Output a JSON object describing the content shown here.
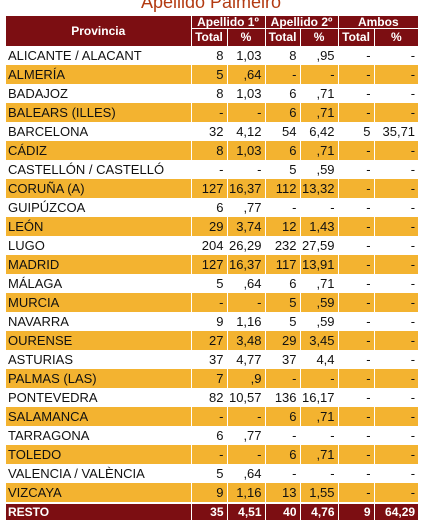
{
  "title": "Apellido Palmeiro",
  "header": {
    "provincia": "Provincia",
    "groups": [
      "Apellido 1º",
      "Apellido 2º",
      "Ambos"
    ],
    "sub_total": "Total",
    "sub_pct": "%"
  },
  "rows": [
    {
      "name": "ALICANTE / ALACANT",
      "v": [
        "8",
        "1,03",
        "8",
        ",95",
        "-",
        "-"
      ]
    },
    {
      "name": "ALMERÍA",
      "v": [
        "5",
        ",64",
        "-",
        "-",
        "-",
        "-"
      ]
    },
    {
      "name": "BADAJOZ",
      "v": [
        "8",
        "1,03",
        "6",
        ",71",
        "-",
        "-"
      ]
    },
    {
      "name": "BALEARS (ILLES)",
      "v": [
        "-",
        "-",
        "6",
        ",71",
        "-",
        "-"
      ]
    },
    {
      "name": "BARCELONA",
      "v": [
        "32",
        "4,12",
        "54",
        "6,42",
        "5",
        "35,71"
      ]
    },
    {
      "name": "CÁDIZ",
      "v": [
        "8",
        "1,03",
        "6",
        ",71",
        "-",
        "-"
      ]
    },
    {
      "name": "CASTELLÓN / CASTELLÓ",
      "v": [
        "-",
        "-",
        "5",
        ",59",
        "-",
        "-"
      ]
    },
    {
      "name": "CORUÑA (A)",
      "v": [
        "127",
        "16,37",
        "112",
        "13,32",
        "-",
        "-"
      ]
    },
    {
      "name": "GUIPÚZCOA",
      "v": [
        "6",
        ",77",
        "-",
        "-",
        "-",
        "-"
      ]
    },
    {
      "name": "LEÓN",
      "v": [
        "29",
        "3,74",
        "12",
        "1,43",
        "-",
        "-"
      ]
    },
    {
      "name": "LUGO",
      "v": [
        "204",
        "26,29",
        "232",
        "27,59",
        "-",
        "-"
      ]
    },
    {
      "name": "MADRID",
      "v": [
        "127",
        "16,37",
        "117",
        "13,91",
        "-",
        "-"
      ]
    },
    {
      "name": "MÁLAGA",
      "v": [
        "5",
        ",64",
        "6",
        ",71",
        "-",
        "-"
      ]
    },
    {
      "name": "MURCIA",
      "v": [
        "-",
        "-",
        "5",
        ",59",
        "-",
        "-"
      ]
    },
    {
      "name": "NAVARRA",
      "v": [
        "9",
        "1,16",
        "5",
        ",59",
        "-",
        "-"
      ]
    },
    {
      "name": "OURENSE",
      "v": [
        "27",
        "3,48",
        "29",
        "3,45",
        "-",
        "-"
      ]
    },
    {
      "name": "ASTURIAS",
      "v": [
        "37",
        "4,77",
        "37",
        "4,4",
        "-",
        "-"
      ]
    },
    {
      "name": "PALMAS (LAS)",
      "v": [
        "7",
        ",9",
        "-",
        "-",
        "-",
        "-"
      ]
    },
    {
      "name": "PONTEVEDRA",
      "v": [
        "82",
        "10,57",
        "136",
        "16,17",
        "-",
        "-"
      ]
    },
    {
      "name": "SALAMANCA",
      "v": [
        "-",
        "-",
        "6",
        ",71",
        "-",
        "-"
      ]
    },
    {
      "name": "TARRAGONA",
      "v": [
        "6",
        ",77",
        "-",
        "-",
        "-",
        "-"
      ]
    },
    {
      "name": "TOLEDO",
      "v": [
        "-",
        "-",
        "6",
        ",71",
        "-",
        "-"
      ]
    },
    {
      "name": "VALENCIA / VALÈNCIA",
      "v": [
        "5",
        ",64",
        "-",
        "-",
        "-",
        "-"
      ]
    },
    {
      "name": "VIZCAYA",
      "v": [
        "9",
        "1,16",
        "13",
        "1,55",
        "-",
        "-"
      ]
    }
  ],
  "resto": {
    "name": "RESTO",
    "v": [
      "35",
      "4,51",
      "40",
      "4,76",
      "9",
      "64,29"
    ]
  },
  "colors": {
    "header_bg": "#7c0e12",
    "stripe": "#f3b330",
    "title": "#b33b12"
  }
}
